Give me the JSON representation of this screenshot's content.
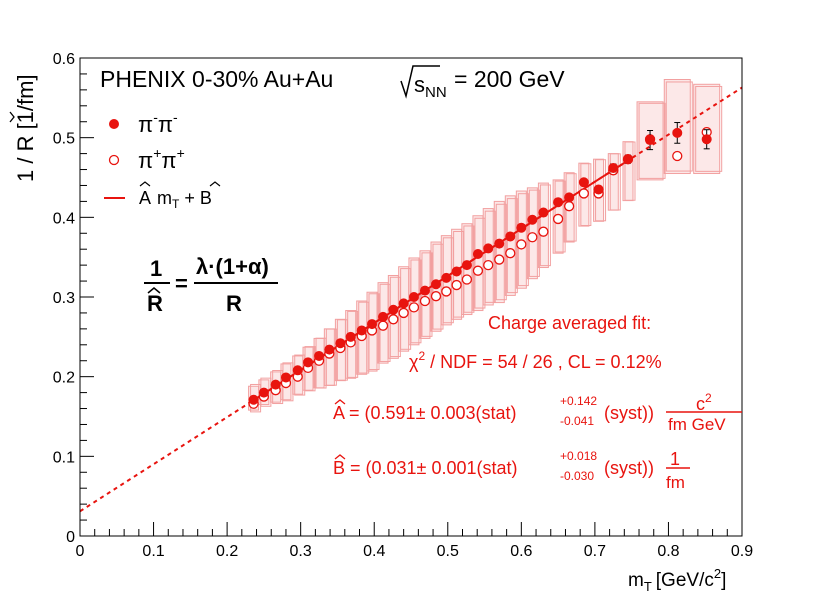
{
  "chart_data": {
    "type": "scatter",
    "title": "PHENIX 0-30%  Au+Au",
    "energy_prefix": "s",
    "energy_sub": "NN",
    "energy_value": "= 200 GeV",
    "xlabel": "m",
    "xlabel_sub": "T",
    "xlabel_units": "[GeV/c",
    "xlabel_units_sup": "2",
    "xlabel_units_end": "]",
    "ylabel": "1 / R [1/fm]",
    "xlim": [
      0,
      0.9
    ],
    "ylim": [
      0,
      0.6
    ],
    "xticks": [
      {
        "v": 0,
        "label": "0"
      },
      {
        "v": 0.1,
        "label": "0.1"
      },
      {
        "v": 0.2,
        "label": "0.2"
      },
      {
        "v": 0.3,
        "label": "0.3"
      },
      {
        "v": 0.4,
        "label": "0.4"
      },
      {
        "v": 0.5,
        "label": "0.5"
      },
      {
        "v": 0.6,
        "label": "0.6"
      },
      {
        "v": 0.7,
        "label": "0.7"
      },
      {
        "v": 0.8,
        "label": "0.8"
      },
      {
        "v": 0.9,
        "label": "0.9"
      }
    ],
    "yticks": [
      {
        "v": 0,
        "label": "0"
      },
      {
        "v": 0.1,
        "label": "0.1"
      },
      {
        "v": 0.2,
        "label": "0.2"
      },
      {
        "v": 0.3,
        "label": "0.3"
      },
      {
        "v": 0.4,
        "label": "0.4"
      },
      {
        "v": 0.5,
        "label": "0.5"
      },
      {
        "v": 0.6,
        "label": "0.6"
      }
    ],
    "legend": {
      "neg_label": "π",
      "neg_sup": "-",
      "pos_label": "π",
      "pos_sup": "+",
      "fit_label_a": "A",
      "fit_label_m": "m",
      "fit_label_sub": "T",
      "fit_label_b": "+ B"
    },
    "formula": {
      "lhs_num": "1",
      "lhs_den": "R",
      "eq": "=",
      "rhs_num": "λ·(1+α)",
      "rhs_den": "R"
    },
    "fit_box": {
      "heading": "Charge averaged  fit:",
      "chi2_symbol": "χ",
      "chi2_sup": "2",
      "chi2_text": "/ NDF = 54 / 26 , CL = 0.12%",
      "a_prefix": "A = (0.591± 0.003(stat)",
      "a_sup": "+0.142",
      "a_sub": "-0.041",
      "a_suffix": "(syst))",
      "a_unit_num": "c",
      "a_unit_num_sup": "2",
      "a_unit_den": "fm GeV",
      "b_prefix": "B = (0.031± 0.001(stat)",
      "b_sup": "+0.018",
      "b_sub": "-0.030",
      "b_suffix": "(syst))",
      "b_unit_num": "1",
      "b_unit_den": "fm"
    },
    "fit": {
      "slope": 0.591,
      "intercept": 0.031,
      "solid_range": [
        0.232,
        0.745
      ],
      "dashed_range": [
        0,
        0.9
      ]
    },
    "series": [
      {
        "name": "pi-pi-",
        "x": [
          0.236,
          0.25,
          0.266,
          0.28,
          0.296,
          0.31,
          0.325,
          0.339,
          0.354,
          0.368,
          0.383,
          0.397,
          0.412,
          0.426,
          0.44,
          0.454,
          0.469,
          0.484,
          0.498,
          0.512,
          0.526,
          0.541,
          0.555,
          0.57,
          0.585,
          0.6,
          0.615,
          0.63,
          0.65,
          0.665,
          0.685,
          0.705,
          0.725,
          0.745,
          0.775,
          0.812,
          0.852
        ],
        "y": [
          0.171,
          0.18,
          0.19,
          0.199,
          0.208,
          0.218,
          0.226,
          0.234,
          0.242,
          0.25,
          0.258,
          0.266,
          0.275,
          0.284,
          0.292,
          0.3,
          0.308,
          0.316,
          0.324,
          0.332,
          0.34,
          0.354,
          0.361,
          0.367,
          0.376,
          0.387,
          0.397,
          0.406,
          0.419,
          0.425,
          0.444,
          0.435,
          0.462,
          0.473,
          0.497,
          0.506,
          0.498
        ],
        "err": [
          0,
          0,
          0,
          0,
          0,
          0,
          0,
          0,
          0,
          0,
          0,
          0,
          0,
          0,
          0,
          0,
          0,
          0,
          0,
          0,
          0,
          0,
          0,
          0,
          0,
          0,
          0,
          0,
          0,
          0,
          0.004,
          0.004,
          0.005,
          0.005,
          0.012,
          0.013,
          0.012
        ],
        "sys_lo": [
          0.158,
          0.165,
          0.168,
          0.171,
          0.178,
          0.183,
          0.186,
          0.189,
          0.195,
          0.198,
          0.203,
          0.207,
          0.217,
          0.223,
          0.232,
          0.24,
          0.248,
          0.257,
          0.265,
          0.272,
          0.278,
          0.283,
          0.29,
          0.293,
          0.302,
          0.311,
          0.323,
          0.337,
          0.355,
          0.369,
          0.389,
          0.395,
          0.409,
          0.421,
          0.447,
          0.455,
          0.455
        ],
        "sys_hi": [
          0.188,
          0.196,
          0.206,
          0.216,
          0.226,
          0.237,
          0.248,
          0.26,
          0.272,
          0.283,
          0.295,
          0.306,
          0.318,
          0.327,
          0.338,
          0.349,
          0.358,
          0.369,
          0.377,
          0.385,
          0.392,
          0.402,
          0.411,
          0.42,
          0.427,
          0.433,
          0.437,
          0.443,
          0.447,
          0.456,
          0.468,
          0.473,
          0.48,
          0.495,
          0.545,
          0.573,
          0.567
        ]
      },
      {
        "name": "pi+pi+",
        "x": [
          0.236,
          0.25,
          0.266,
          0.28,
          0.296,
          0.31,
          0.325,
          0.339,
          0.354,
          0.368,
          0.383,
          0.397,
          0.412,
          0.426,
          0.44,
          0.454,
          0.469,
          0.484,
          0.498,
          0.512,
          0.526,
          0.541,
          0.555,
          0.57,
          0.585,
          0.6,
          0.615,
          0.63,
          0.65,
          0.665,
          0.685,
          0.705,
          0.725,
          0.745,
          0.775,
          0.812,
          0.852
        ],
        "y": [
          0.166,
          0.175,
          0.183,
          0.192,
          0.2,
          0.211,
          0.22,
          0.229,
          0.236,
          0.243,
          0.251,
          0.258,
          0.264,
          0.272,
          0.28,
          0.287,
          0.295,
          0.301,
          0.307,
          0.315,
          0.322,
          0.333,
          0.34,
          0.347,
          0.355,
          0.366,
          0.375,
          0.382,
          0.398,
          0.414,
          0.43,
          0.43,
          0.459,
          0.473,
          0.498,
          0.477,
          0.507
        ]
      }
    ]
  }
}
